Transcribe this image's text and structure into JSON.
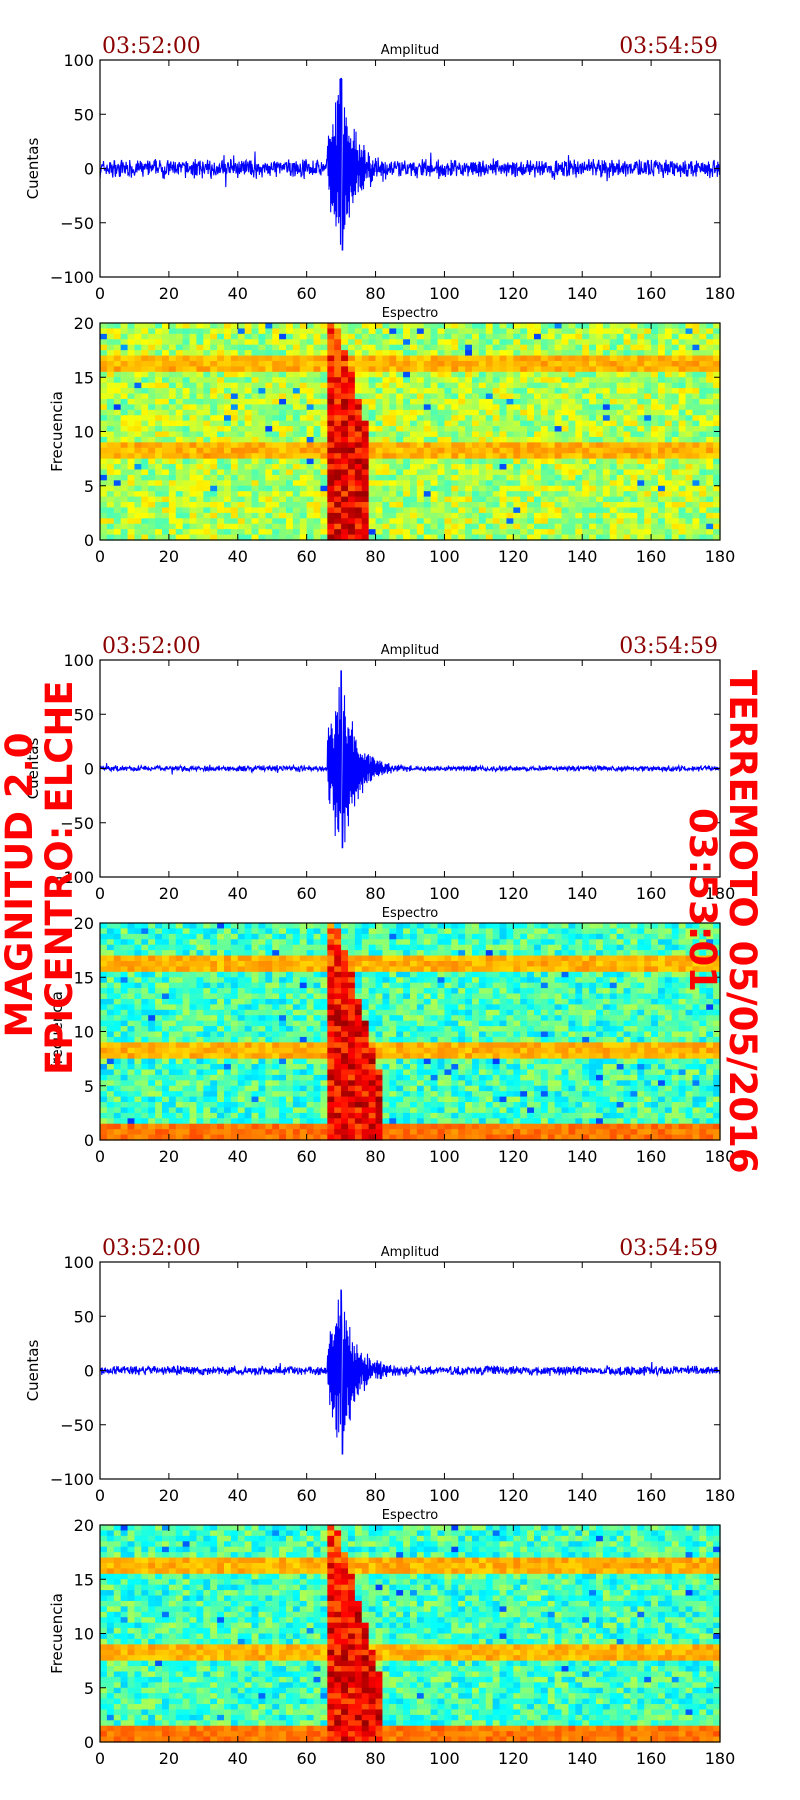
{
  "chart_data": [
    {
      "type": "line",
      "title": "Amplitud",
      "ylabel": "Cuentas",
      "xlim": [
        0,
        180
      ],
      "ylim": [
        -100,
        100
      ],
      "xticks": [
        "0",
        "20",
        "40",
        "60",
        "80",
        "100",
        "120",
        "140",
        "160",
        "180"
      ],
      "yticks": [
        "100",
        "50",
        "0",
        "−50",
        "−100"
      ],
      "time_start": "03:52:00",
      "time_end": "03:54:59",
      "noise_level": 10,
      "event_start": 66,
      "event_peak": 70,
      "event_max": 83,
      "event_min": -75,
      "series_color": "#0000ff"
    },
    {
      "type": "heatmap",
      "title": "Espectro",
      "ylabel": "Frecuencia",
      "xlim": [
        0,
        180
      ],
      "ylim": [
        0,
        20
      ],
      "xticks": [
        "0",
        "20",
        "40",
        "60",
        "80",
        "100",
        "120",
        "140",
        "160",
        "180"
      ],
      "yticks": [
        "20",
        "15",
        "10",
        "5",
        "0"
      ],
      "background": "yellow-green",
      "horizontal_bands_hz": [
        8.3,
        16.2
      ],
      "event_x": [
        66,
        78
      ]
    },
    {
      "type": "line",
      "title": "Amplitud",
      "ylabel": "Cuentas",
      "xlim": [
        0,
        180
      ],
      "ylim": [
        -100,
        100
      ],
      "xticks": [
        "0",
        "20",
        "40",
        "60",
        "80",
        "100",
        "120",
        "140",
        "160",
        "180"
      ],
      "yticks": [
        "100",
        "50",
        "0",
        "−50",
        "−100"
      ],
      "time_start": "03:52:00",
      "time_end": "03:54:59",
      "noise_level": 3,
      "event_start": 66,
      "event_peak": 70,
      "event_max": 90,
      "event_min": -73,
      "series_color": "#0000ff"
    },
    {
      "type": "heatmap",
      "title": "Espectro",
      "ylabel": "Frecuencia",
      "xlim": [
        0,
        180
      ],
      "ylim": [
        0,
        20
      ],
      "xticks": [
        "0",
        "20",
        "40",
        "60",
        "80",
        "100",
        "120",
        "140",
        "160",
        "180"
      ],
      "yticks": [
        "20",
        "15",
        "10",
        "5",
        "0"
      ],
      "background": "cyan-green",
      "horizontal_bands_hz": [
        8.3,
        16.2,
        0.5
      ],
      "event_x": [
        66,
        82
      ]
    },
    {
      "type": "line",
      "title": "Amplitud",
      "ylabel": "Cuentas",
      "xlim": [
        0,
        180
      ],
      "ylim": [
        -100,
        100
      ],
      "xticks": [
        "0",
        "20",
        "40",
        "60",
        "80",
        "100",
        "120",
        "140",
        "160",
        "180"
      ],
      "yticks": [
        "100",
        "50",
        "0",
        "−50",
        "−100"
      ],
      "time_start": "03:52:00",
      "time_end": "03:54:59",
      "noise_level": 5,
      "event_start": 66,
      "event_peak": 70,
      "event_max": 74,
      "event_min": -77,
      "series_color": "#0000ff"
    },
    {
      "type": "heatmap",
      "title": "Espectro",
      "ylabel": "Frecuencia",
      "xlim": [
        0,
        180
      ],
      "ylim": [
        0,
        20
      ],
      "xticks": [
        "0",
        "20",
        "40",
        "60",
        "80",
        "100",
        "120",
        "140",
        "160",
        "180"
      ],
      "yticks": [
        "20",
        "15",
        "10",
        "5",
        "0"
      ],
      "background": "cyan-green",
      "horizontal_bands_hz": [
        8.3,
        16.2,
        0.5
      ],
      "event_x": [
        66,
        82
      ]
    }
  ],
  "annotation_right": [
    "TERREMOTO 05/05/2016",
    "03:53:01"
  ],
  "annotation_left": [
    "MAGNITUD 2.0",
    "EPICENTRO: ELCHE"
  ],
  "colors": {
    "annotation": "#ff0000",
    "time_label": "#8b0000",
    "trace": "#0000ff"
  }
}
